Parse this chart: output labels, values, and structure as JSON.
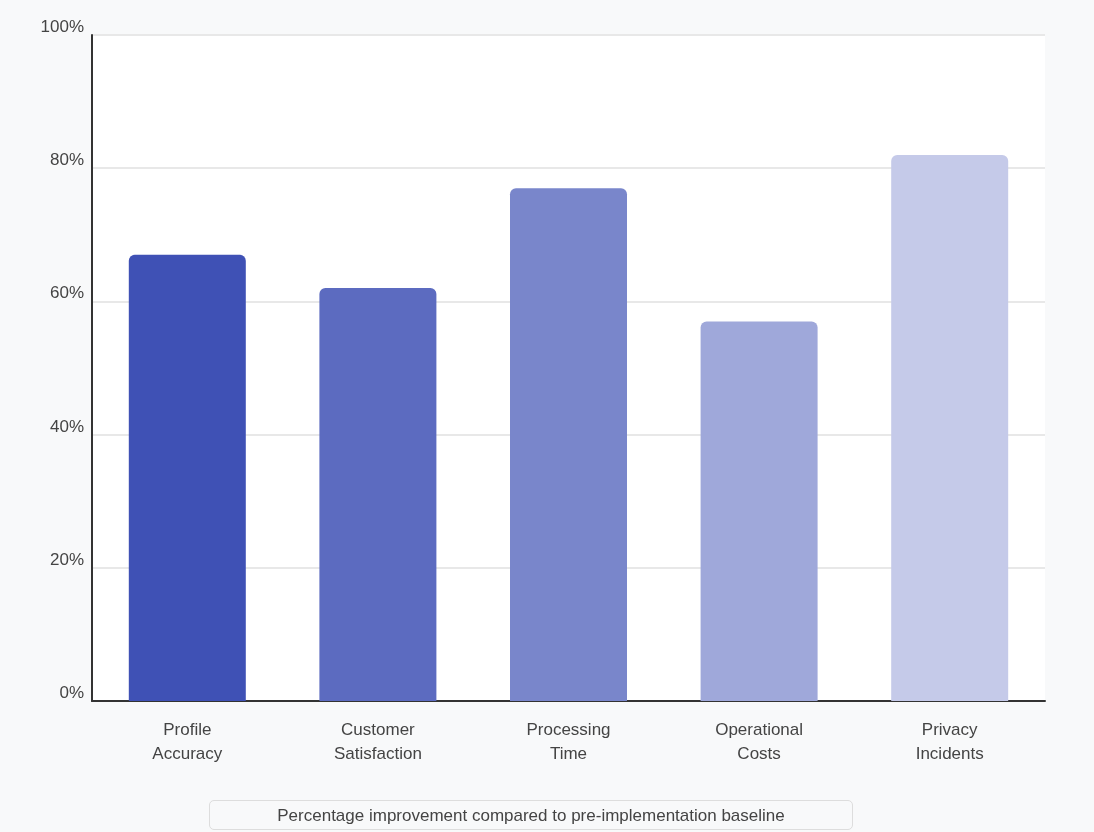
{
  "chart_data": {
    "type": "bar",
    "categories": [
      "Profile\nAccuracy",
      "Customer\nSatisfaction",
      "Processing\nTime",
      "Operational\nCosts",
      "Privacy\nIncidents"
    ],
    "values": [
      67,
      62,
      77,
      57,
      82
    ],
    "colors": [
      "#3f51b5",
      "#5c6bc0",
      "#7986cb",
      "#9fa8da",
      "#c5cae9"
    ],
    "ylim": [
      0,
      100
    ],
    "yticks": [
      {
        "value": 0,
        "label": "0%"
      },
      {
        "value": 20,
        "label": "20%"
      },
      {
        "value": 40,
        "label": "40%"
      },
      {
        "value": 60,
        "label": "60%"
      },
      {
        "value": 80,
        "label": "80%"
      },
      {
        "value": 100,
        "label": "100%"
      }
    ],
    "grid": "y",
    "annotations": [
      "Percentage improvement compared to pre-implementation baseline"
    ]
  }
}
